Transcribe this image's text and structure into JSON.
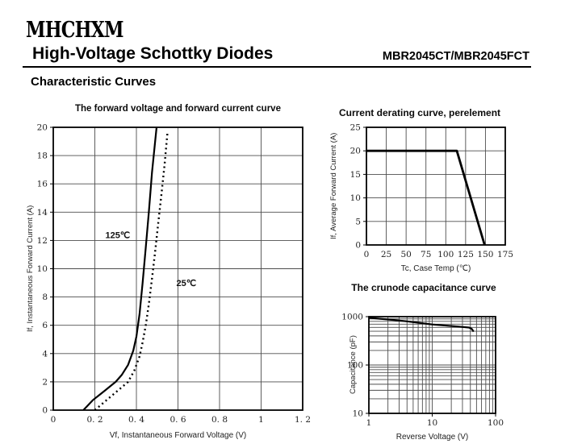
{
  "header": {
    "logo": "MHCHXM",
    "title": "High-Voltage Schottky Diodes",
    "part_number": "MBR2045CT/MBR2045FCT"
  },
  "section": {
    "title": "Characteristic Curves"
  },
  "chart_data": [
    {
      "id": "forward",
      "type": "line",
      "title": "The forward voltage and forward current curve",
      "xlabel": "Vf, Instantaneous Forward Voltage (V)",
      "ylabel": "If, Instantaneous Forward Current (A)",
      "xscale": "linear",
      "yscale": "linear",
      "xlim": [
        0,
        1.2
      ],
      "ylim": [
        0,
        20
      ],
      "grid": true,
      "legend_position": "none",
      "xticks": [
        0,
        0.2,
        0.4,
        0.6,
        0.8,
        1,
        1.2
      ],
      "xtick_labels": [
        "0",
        "0. 2",
        "0. 4",
        "0. 6",
        "0. 8",
        "1",
        "1. 2"
      ],
      "yticks": [
        0,
        2,
        4,
        6,
        8,
        10,
        12,
        14,
        16,
        18,
        20
      ],
      "ytick_labels": [
        "0",
        "2",
        "4",
        "6",
        "8",
        "10",
        "12",
        "14",
        "16",
        "18",
        "20"
      ],
      "series": [
        {
          "name": "125℃",
          "style": "solid",
          "points": [
            [
              0.145,
              0
            ],
            [
              0.19,
              0.7
            ],
            [
              0.25,
              1.4
            ],
            [
              0.3,
              2
            ],
            [
              0.33,
              2.5
            ],
            [
              0.36,
              3.2
            ],
            [
              0.385,
              4.2
            ],
            [
              0.4,
              5.2
            ],
            [
              0.415,
              6.8
            ],
            [
              0.43,
              9
            ],
            [
              0.445,
              11.5
            ],
            [
              0.46,
              14
            ],
            [
              0.475,
              16.8
            ],
            [
              0.49,
              19
            ],
            [
              0.497,
              20
            ]
          ]
        },
        {
          "name": "25℃",
          "style": "dashed",
          "points": [
            [
              0.2,
              0
            ],
            [
              0.24,
              0.5
            ],
            [
              0.28,
              1
            ],
            [
              0.32,
              1.5
            ],
            [
              0.36,
              2
            ],
            [
              0.39,
              2.8
            ],
            [
              0.415,
              3.8
            ],
            [
              0.43,
              4.8
            ],
            [
              0.445,
              6
            ],
            [
              0.46,
              7.5
            ],
            [
              0.475,
              9.3
            ],
            [
              0.49,
              11.2
            ],
            [
              0.505,
              13.2
            ],
            [
              0.52,
              15.2
            ],
            [
              0.535,
              17.3
            ],
            [
              0.55,
              19.7
            ]
          ]
        }
      ],
      "annotations": [
        {
          "text": "125℃",
          "x": 0.31,
          "y": 12.4
        },
        {
          "text": "25℃",
          "x": 0.64,
          "y": 9.0
        }
      ]
    },
    {
      "id": "derating",
      "type": "line",
      "title": "Current derating curve, perelement",
      "xlabel": "Tc, Case Temp (℃)",
      "ylabel": "If, Average Forward Current (A)",
      "xscale": "linear",
      "yscale": "linear",
      "xlim": [
        0,
        175
      ],
      "ylim": [
        0,
        25
      ],
      "grid": true,
      "legend_position": "none",
      "xticks": [
        0,
        25,
        50,
        75,
        100,
        125,
        150,
        175
      ],
      "xtick_labels": [
        "0",
        "25",
        "50",
        "75",
        "100",
        "125",
        "150",
        "175"
      ],
      "yticks": [
        0,
        5,
        10,
        15,
        20,
        25
      ],
      "ytick_labels": [
        "0",
        "5",
        "10",
        "15",
        "20",
        "25"
      ],
      "series": [
        {
          "name": "derating",
          "style": "solid",
          "points": [
            [
              0,
              20
            ],
            [
              114,
              20
            ],
            [
              149,
              0
            ]
          ]
        }
      ],
      "annotations": []
    },
    {
      "id": "capacitance",
      "type": "line",
      "title": "The crunode capacitance curve",
      "xlabel": "Reverse Voltage (V)",
      "ylabel": "Capacitance (pF)",
      "xscale": "log",
      "yscale": "log",
      "xlim": [
        1,
        100
      ],
      "ylim": [
        10,
        1000
      ],
      "grid": true,
      "legend_position": "none",
      "xticks": [
        1,
        10,
        100
      ],
      "xtick_labels": [
        "1",
        "10",
        "100"
      ],
      "yticks": [
        10,
        100,
        1000
      ],
      "ytick_labels": [
        "10",
        "100",
        "1000"
      ],
      "series": [
        {
          "name": "capacitance",
          "style": "solid",
          "points": [
            [
              1,
              950
            ],
            [
              1.5,
              905
            ],
            [
              2.5,
              855
            ],
            [
              4,
              800
            ],
            [
              6,
              750
            ],
            [
              10,
              690
            ],
            [
              15,
              660
            ],
            [
              25,
              625
            ],
            [
              38,
              595
            ],
            [
              42,
              560
            ],
            [
              45,
              490
            ]
          ]
        }
      ],
      "annotations": []
    }
  ]
}
